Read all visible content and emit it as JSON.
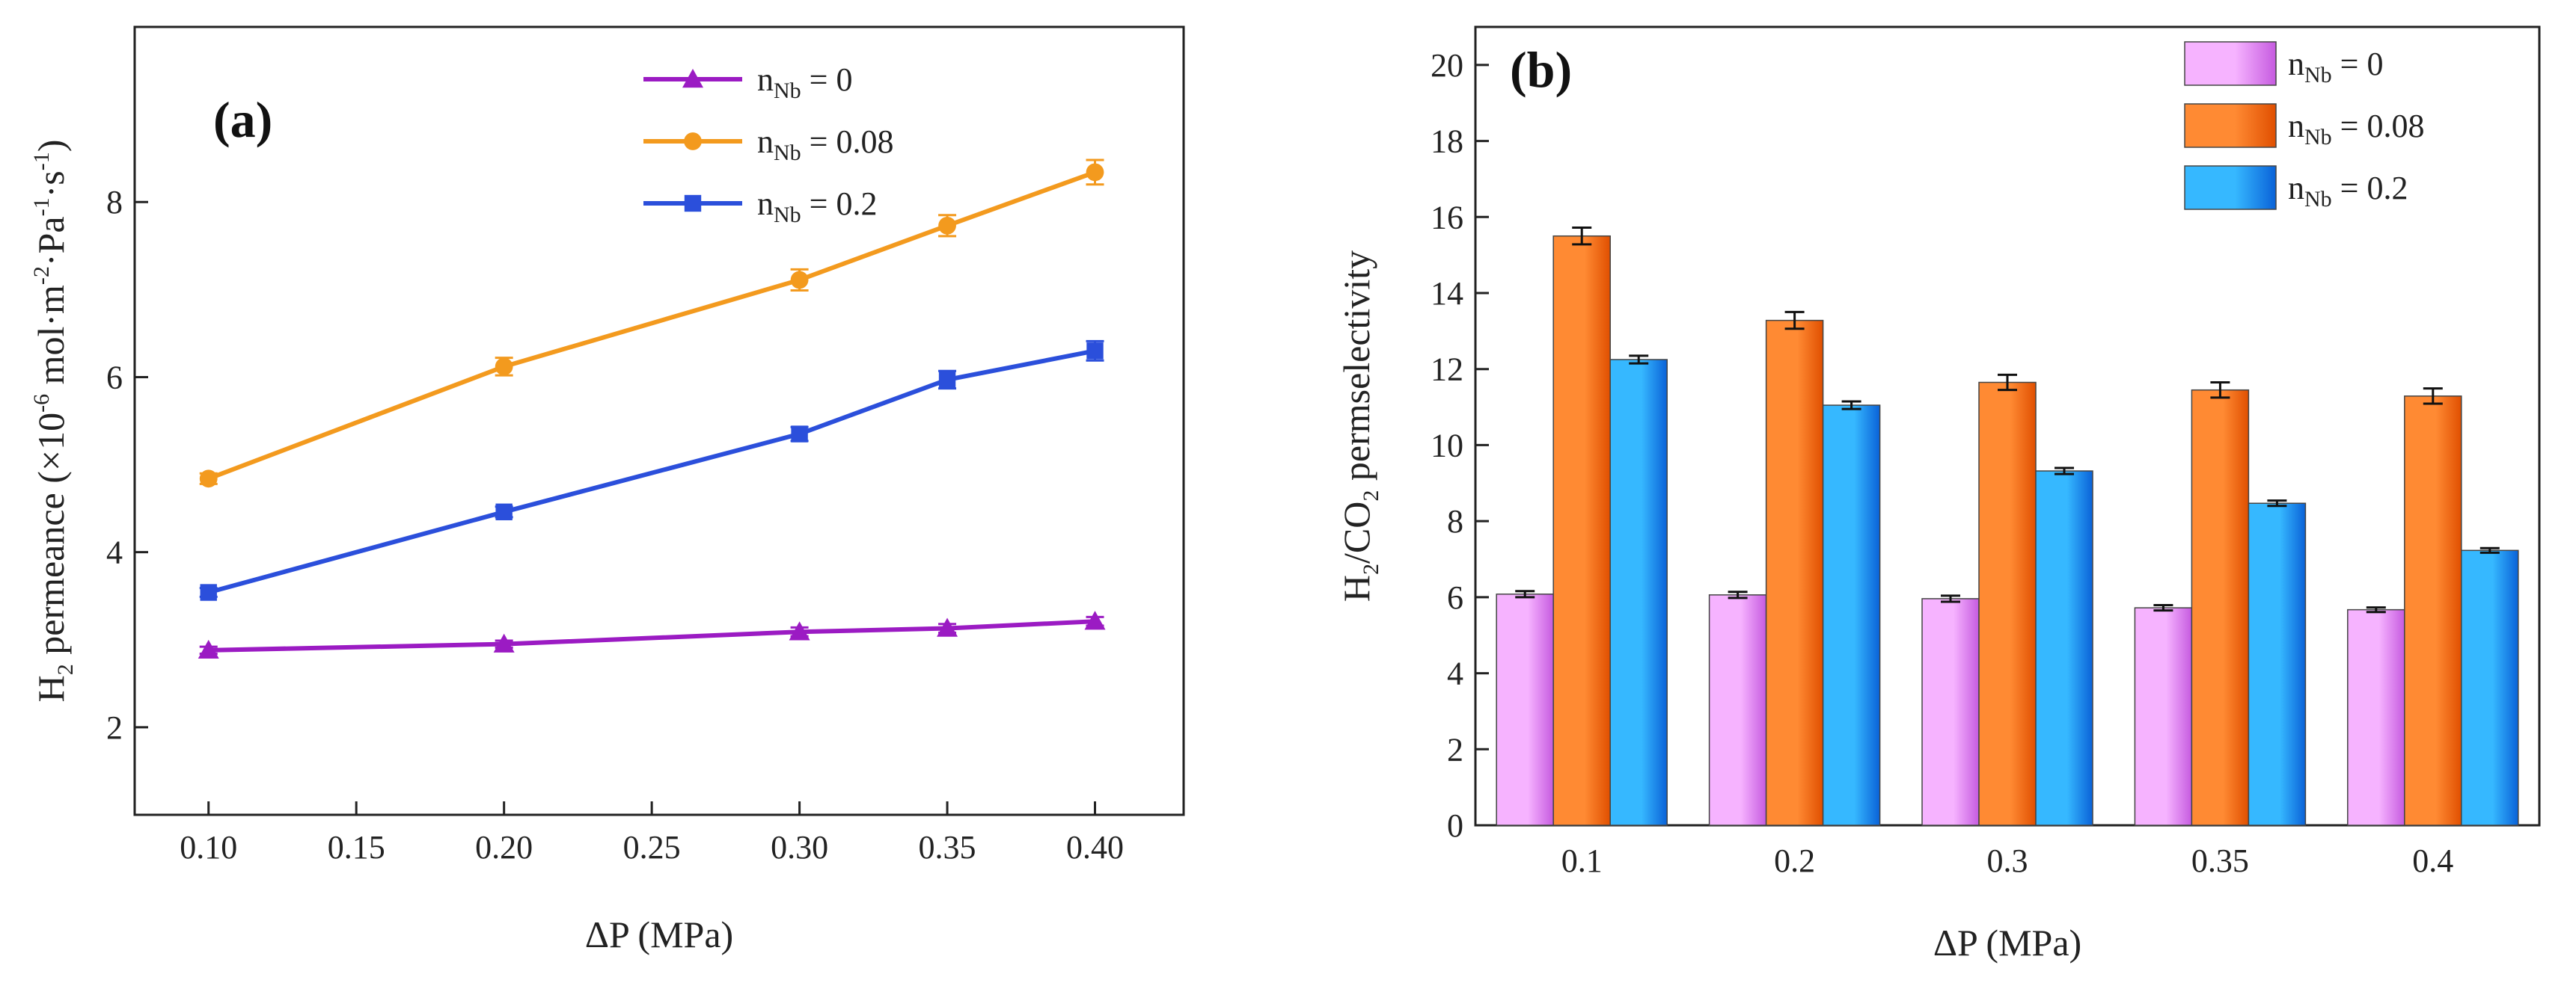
{
  "chart_data": [
    {
      "type": "line",
      "panel_label": "(a)",
      "xlabel": "ΔP (MPa)",
      "ylabel": {
        "main": "H",
        "sub": "2",
        "rest": " permeance (×10",
        "exp1": "-6",
        "mid": " mol·m",
        "exp2": "-2",
        "mid2": "·Pa",
        "exp3": "-1",
        "mid3": "·s",
        "exp4": "-1",
        "end": ")"
      },
      "xlim": [
        0.075,
        0.43
      ],
      "ylim": [
        1,
        10
      ],
      "xticks": [
        0.1,
        0.15,
        0.2,
        0.25,
        0.3,
        0.35,
        0.4
      ],
      "xtick_labels": [
        "0.10",
        "0.15",
        "0.20",
        "0.25",
        "0.30",
        "0.35",
        "0.40"
      ],
      "yticks": [
        2,
        4,
        6,
        8
      ],
      "ytick_labels": [
        "2",
        "4",
        "6",
        "8"
      ],
      "x": [
        0.1,
        0.2,
        0.3,
        0.35,
        0.4
      ],
      "series": [
        {
          "name": "0",
          "label_prefix": "n",
          "label_sub": "Nb",
          "label_eq": " = ",
          "marker": "triangle",
          "color": "#9B1BC3",
          "values": [
            2.88,
            2.95,
            3.09,
            3.13,
            3.21
          ],
          "errors": [
            0.04,
            0.04,
            0.05,
            0.05,
            0.05
          ]
        },
        {
          "name": "0.08",
          "label_prefix": "n",
          "label_sub": "Nb",
          "label_eq": " = ",
          "marker": "circle",
          "color": "#F39A1E",
          "values": [
            4.84,
            6.12,
            7.11,
            7.73,
            8.34
          ],
          "errors": [
            0.06,
            0.1,
            0.12,
            0.12,
            0.14
          ]
        },
        {
          "name": "0.2",
          "label_prefix": "n",
          "label_sub": "Nb",
          "label_eq": " = ",
          "marker": "square",
          "color": "#2B4FDB",
          "values": [
            3.54,
            4.46,
            5.35,
            5.97,
            6.3
          ],
          "errors": [
            0.05,
            0.06,
            0.08,
            0.1,
            0.11
          ]
        }
      ]
    },
    {
      "type": "bar",
      "panel_label": "(b)",
      "xlabel": "ΔP (MPa)",
      "ylabel": {
        "main": "H",
        "sub": "2",
        "mid": "/CO",
        "sub2": "2",
        "rest": " permselectivity"
      },
      "ylim": [
        0,
        21
      ],
      "yticks": [
        0,
        2,
        4,
        6,
        8,
        10,
        12,
        14,
        16,
        18,
        20
      ],
      "ytick_labels": [
        "0",
        "2",
        "4",
        "6",
        "8",
        "10",
        "12",
        "14",
        "16",
        "18",
        "20"
      ],
      "categories": [
        "0.1",
        "0.2",
        "0.3",
        "0.35",
        "0.4"
      ],
      "series": [
        {
          "name": "0",
          "label_prefix": "n",
          "label_sub": "Nb",
          "label_eq": " = ",
          "color_light": "#F6B3FF",
          "color_dark": "#C65BE0",
          "values": [
            6.08,
            6.06,
            5.96,
            5.72,
            5.67
          ],
          "errors": [
            0.08,
            0.08,
            0.08,
            0.07,
            0.06
          ]
        },
        {
          "name": "0.08",
          "label_prefix": "n",
          "label_sub": "Nb",
          "label_eq": " = ",
          "color_light": "#FF8A33",
          "color_dark": "#E04F00",
          "values": [
            15.5,
            13.28,
            11.65,
            11.45,
            11.29
          ],
          "errors": [
            0.22,
            0.22,
            0.2,
            0.2,
            0.2
          ]
        },
        {
          "name": "0.2",
          "label_prefix": "n",
          "label_sub": "Nb",
          "label_eq": " = ",
          "color_light": "#36B8FF",
          "color_dark": "#0A62D8",
          "values": [
            12.25,
            11.05,
            9.32,
            8.47,
            7.23
          ],
          "errors": [
            0.1,
            0.1,
            0.08,
            0.07,
            0.06
          ]
        }
      ]
    }
  ]
}
